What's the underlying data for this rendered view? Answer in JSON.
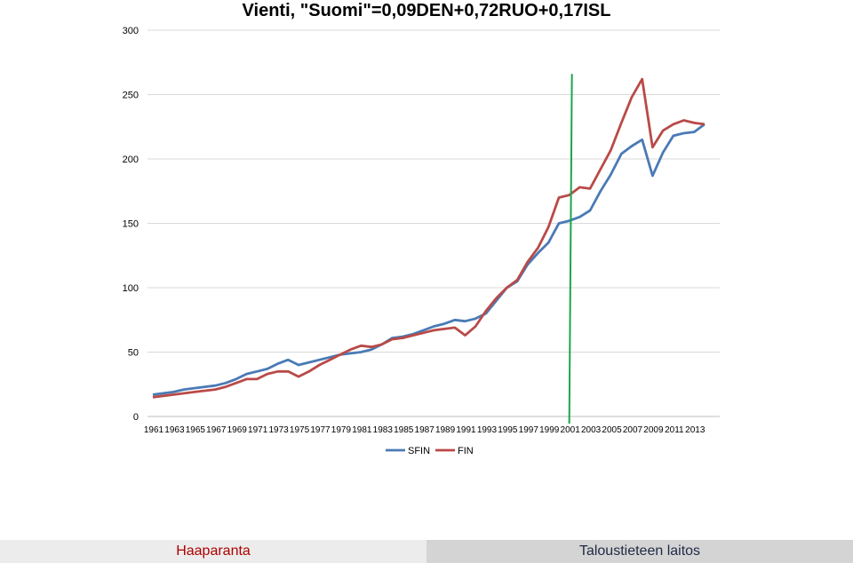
{
  "chart_data": {
    "type": "line",
    "title": "Vienti, \"Suomi\"=0,09DEN+0,72RUO+0,17ISL",
    "xlabel": "",
    "ylabel": "",
    "ylim": [
      0,
      300
    ],
    "yticks": [
      0,
      50,
      100,
      150,
      200,
      250,
      300
    ],
    "grid": true,
    "legend": "bottom",
    "x": [
      1961,
      1962,
      1963,
      1964,
      1965,
      1966,
      1967,
      1968,
      1969,
      1970,
      1971,
      1972,
      1973,
      1974,
      1975,
      1976,
      1977,
      1978,
      1979,
      1980,
      1981,
      1982,
      1983,
      1984,
      1985,
      1986,
      1987,
      1988,
      1989,
      1990,
      1991,
      1992,
      1993,
      1994,
      1995,
      1996,
      1997,
      1998,
      1999,
      2000,
      2001,
      2002,
      2003,
      2004,
      2005,
      2006,
      2007,
      2008,
      2009,
      2010,
      2011,
      2012,
      2013,
      2014
    ],
    "xtick_labels": [
      "1961",
      "1963",
      "1965",
      "1967",
      "1969",
      "1971",
      "1973",
      "1975",
      "1977",
      "1979",
      "1981",
      "1983",
      "1985",
      "1987",
      "1989",
      "1991",
      "1993",
      "1995",
      "1997",
      "1999",
      "2001",
      "2003",
      "2005",
      "2007",
      "2009",
      "2011",
      "2013"
    ],
    "series": [
      {
        "name": "SFIN",
        "color": "#4a7ab5",
        "values": [
          17,
          18,
          19,
          21,
          22,
          23,
          24,
          26,
          29,
          33,
          35,
          37,
          41,
          44,
          40,
          42,
          44,
          46,
          48,
          49,
          50,
          52,
          56,
          61,
          62,
          64,
          67,
          70,
          72,
          75,
          74,
          76,
          80,
          90,
          100,
          105,
          118,
          127,
          135,
          150,
          152,
          155,
          160,
          175,
          188,
          204,
          210,
          215,
          187,
          205,
          218,
          220,
          221,
          227
        ]
      },
      {
        "name": "FIN",
        "color": "#b94a48",
        "values": [
          15,
          16,
          17,
          18,
          19,
          20,
          21,
          23,
          26,
          29,
          29,
          33,
          35,
          35,
          31,
          35,
          40,
          44,
          48,
          52,
          55,
          54,
          56,
          60,
          61,
          63,
          65,
          67,
          68,
          69,
          63,
          70,
          82,
          92,
          100,
          106,
          120,
          131,
          147,
          170,
          172,
          178,
          177,
          192,
          207,
          228,
          248,
          262,
          209,
          222,
          227,
          230,
          228,
          227
        ]
      }
    ],
    "annotation": {
      "type": "vertical-line",
      "x": 2001,
      "color": "#1aa64b"
    }
  },
  "footer": {
    "left_label": "Haaparanta",
    "right_label": "Taloustieteen laitos"
  }
}
